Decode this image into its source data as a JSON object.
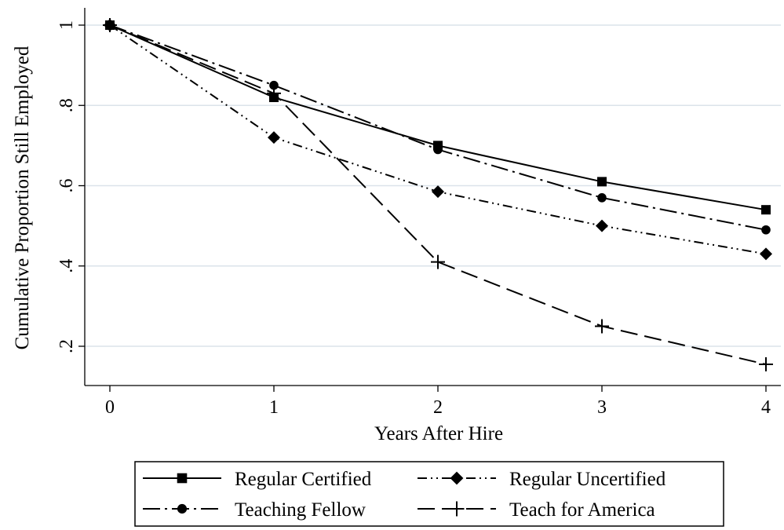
{
  "chart_data": {
    "type": "line",
    "title": "",
    "xlabel": "Years After Hire",
    "ylabel": "Cumulative Proportion Still Employed",
    "x": [
      0,
      1,
      2,
      3,
      4
    ],
    "x_ticks": [
      "0",
      "1",
      "2",
      "3",
      "4"
    ],
    "y_ticks": [
      {
        "value": 1.0,
        "label": "1"
      },
      {
        "value": 0.8,
        "label": ".8"
      },
      {
        "value": 0.6,
        "label": ".6"
      },
      {
        "value": 0.4,
        "label": ".4"
      },
      {
        "value": 0.2,
        "label": ".2"
      }
    ],
    "xlim": [
      0,
      4
    ],
    "ylim": [
      0.15,
      1.0
    ],
    "grid": true,
    "legend_position": "bottom",
    "series": [
      {
        "name": "Regular Certified",
        "values": [
          1.0,
          0.82,
          0.7,
          0.61,
          0.54
        ],
        "marker": "square",
        "dash": "solid"
      },
      {
        "name": "Regular Uncertified",
        "values": [
          1.0,
          0.72,
          0.585,
          0.5,
          0.43
        ],
        "marker": "diamond",
        "dash": "dash-dot-dot"
      },
      {
        "name": "Teaching Fellow",
        "values": [
          1.0,
          0.85,
          0.69,
          0.57,
          0.49
        ],
        "marker": "circle",
        "dash": "long-dash-dot"
      },
      {
        "name": "Teach for America",
        "values": [
          1.0,
          0.83,
          0.41,
          0.25,
          0.155
        ],
        "marker": "plus",
        "dash": "long-dash"
      }
    ],
    "colors": {
      "line": "#000000",
      "grid": "#dbe3ea",
      "background": "#ffffff"
    }
  }
}
